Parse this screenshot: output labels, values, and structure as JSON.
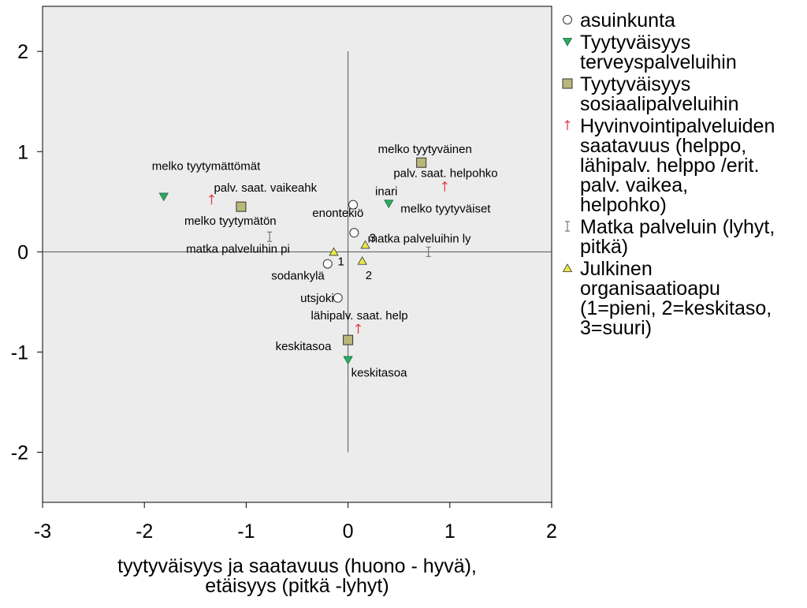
{
  "chart_data": {
    "type": "scatter",
    "xlabel": [
      "tyytyväisyys ja saatavuus (huono - hyvä),",
      "etäisyys (pitkä -lyhyt)"
    ],
    "ylabel": "",
    "xlim": [
      -3,
      2
    ],
    "ylim": [
      -2.5,
      2.45
    ],
    "xticks": [
      -3,
      -2,
      -1,
      0,
      1,
      2
    ],
    "yticks": [
      -2,
      -1,
      0,
      1,
      2
    ],
    "xtick_labels": [
      "-3",
      "-2",
      "-1",
      "0",
      "1",
      "2"
    ],
    "ytick_labels": [
      "-2",
      "-1",
      "0",
      "1",
      "2"
    ],
    "reference_lines": {
      "horizontal_y": 0,
      "horizontal_x_range": [
        -3,
        2
      ],
      "vertical_x": 0,
      "vertical_y_range": [
        -2,
        2
      ]
    },
    "background_color": "#ececec",
    "legend_position": "right",
    "series": [
      {
        "name": "asuinkunta",
        "marker": "circle",
        "color": "#ffffff",
        "points": [
          {
            "x": 0.05,
            "y": 0.47,
            "label": "inari"
          },
          {
            "x": 0.06,
            "y": 0.19,
            "label": "enontekiö"
          },
          {
            "x": -0.2,
            "y": -0.12,
            "label": "sodankylä"
          },
          {
            "x": -0.1,
            "y": -0.46,
            "label": "utsjoki"
          }
        ]
      },
      {
        "name": "Tyytyväisyys terveyspalveluihin",
        "legend_lines": [
          "Tyytyväisyys",
          "terveyspalveluihin"
        ],
        "marker": "triangle-down",
        "color": "#2eaa63",
        "points": [
          {
            "x": -1.81,
            "y": 0.55,
            "label": "melko tyytymättömät"
          },
          {
            "x": 0.4,
            "y": 0.48,
            "label": "melko tyytyväiset"
          },
          {
            "x": 0.0,
            "y": -1.08,
            "label": "keskitasoa"
          }
        ]
      },
      {
        "name": "Tyytyväisyys sosiaalipalveluihin",
        "legend_lines": [
          "Tyytyväisyys",
          "sosiaalipalveluihin"
        ],
        "marker": "square",
        "color": "#b9b779",
        "points": [
          {
            "x": -1.05,
            "y": 0.45,
            "label": "melko tyytymätön"
          },
          {
            "x": 0.72,
            "y": 0.89,
            "label": "melko tyytyväinen"
          },
          {
            "x": 0.0,
            "y": -0.88,
            "label": "keskitasoa"
          }
        ]
      },
      {
        "name": "Hyvinvointipalveluiden saatavuus (helppo, lähipalv. helppo /erit. palv. vaikea, helpohko)",
        "legend_lines": [
          "Hyvinvointipalveluiden",
          "saatavuus (helppo,",
          "lähipalv. helppo /erit.",
          "palv. vaikea,",
          "helpohko)"
        ],
        "marker": "arrow",
        "color": "#e0303a",
        "points": [
          {
            "x": -1.34,
            "y": 0.52,
            "label": "palv. saat. vaikeahk"
          },
          {
            "x": 0.95,
            "y": 0.65,
            "label": "palv. saat. helpohko"
          },
          {
            "x": 0.1,
            "y": -0.77,
            "label": "lähipalv. saat. help"
          }
        ]
      },
      {
        "name": "Matka palveluin (lyhyt, pitkä)",
        "legend_lines": [
          "Matka palveluin (lyhyt,",
          "pitkä)"
        ],
        "marker": "ibeam",
        "color": "#777777",
        "points": [
          {
            "x": -0.77,
            "y": 0.15,
            "label": "matka palveluihin pi"
          },
          {
            "x": 0.79,
            "y": 0.0,
            "label": "matka palveluihin ly"
          }
        ]
      },
      {
        "name": "Julkinen organisaatioapu (1=pieni, 2=keskitaso, 3=suuri)",
        "legend_lines": [
          "Julkinen",
          "organisaatioapu",
          "(1=pieni, 2=keskitaso,",
          "3=suuri)"
        ],
        "marker": "triangle-up",
        "color": "#e8e84a",
        "points": [
          {
            "x": -0.14,
            "y": 0.0,
            "label": "1"
          },
          {
            "x": 0.14,
            "y": -0.09,
            "label": "2"
          },
          {
            "x": 0.17,
            "y": 0.07,
            "label": "3"
          }
        ]
      }
    ]
  }
}
